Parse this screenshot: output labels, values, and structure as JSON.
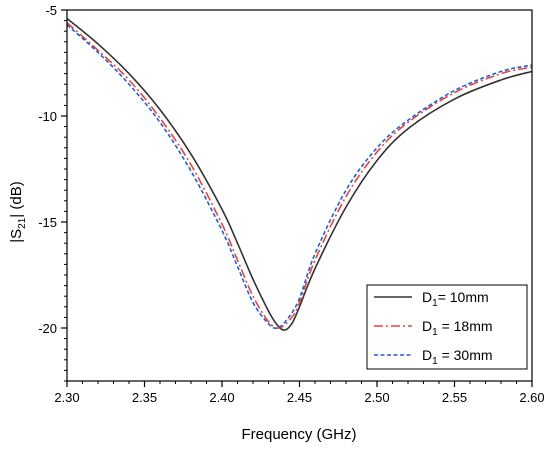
{
  "chart_data": {
    "type": "line",
    "xlabel": "Frequency (GHz)",
    "ylabel_main": "|S",
    "ylabel_sub": "21",
    "ylabel_tail": "| (dB)",
    "xlim": [
      2.3,
      2.6
    ],
    "ylim": [
      -22.5,
      -5
    ],
    "x_ticks": [
      2.3,
      2.35,
      2.4,
      2.45,
      2.5,
      2.55,
      2.6
    ],
    "x_tick_labels": [
      "2.30",
      "2.35",
      "2.40",
      "2.45",
      "2.50",
      "2.55",
      "2.60"
    ],
    "y_ticks": [
      -5,
      -10,
      -15,
      -20
    ],
    "y_tick_labels": [
      "-5",
      "-10",
      "-15",
      "-20"
    ],
    "grid": false,
    "legend_position": "bottom-right",
    "series": [
      {
        "name_main": "D",
        "name_sub": "1",
        "name_tail": "= 10mm",
        "color": "#333333",
        "style": "solid",
        "x": [
          2.3,
          2.32,
          2.34,
          2.36,
          2.38,
          2.4,
          2.41,
          2.42,
          2.43,
          2.435,
          2.44,
          2.445,
          2.45,
          2.46,
          2.48,
          2.5,
          2.52,
          2.55,
          2.58,
          2.6
        ],
        "y": [
          -5.4,
          -6.6,
          -8.0,
          -9.7,
          -11.8,
          -14.4,
          -16.0,
          -17.7,
          -19.2,
          -19.8,
          -20.1,
          -19.8,
          -19.0,
          -17.2,
          -14.3,
          -12.1,
          -10.6,
          -9.2,
          -8.3,
          -7.9
        ]
      },
      {
        "name_main": "D",
        "name_sub": "1",
        "name_tail": " = 18mm",
        "color": "#e8433b",
        "style": "dashdot",
        "x": [
          2.3,
          2.32,
          2.34,
          2.36,
          2.38,
          2.4,
          2.41,
          2.42,
          2.43,
          2.437,
          2.445,
          2.45,
          2.46,
          2.48,
          2.5,
          2.52,
          2.55,
          2.58,
          2.6
        ],
        "y": [
          -5.6,
          -6.9,
          -8.3,
          -10.1,
          -12.3,
          -15.1,
          -16.8,
          -18.5,
          -19.7,
          -20.0,
          -19.5,
          -18.8,
          -16.8,
          -13.8,
          -11.7,
          -10.3,
          -8.9,
          -8.0,
          -7.7
        ]
      },
      {
        "name_main": "D",
        "name_sub": "1",
        "name_tail": " = 30mm",
        "color": "#1f5fd6",
        "style": "dashed",
        "x": [
          2.3,
          2.32,
          2.34,
          2.36,
          2.38,
          2.4,
          2.41,
          2.42,
          2.43,
          2.436,
          2.443,
          2.45,
          2.46,
          2.48,
          2.5,
          2.52,
          2.55,
          2.58,
          2.6
        ],
        "y": [
          -5.7,
          -7.0,
          -8.5,
          -10.3,
          -12.6,
          -15.4,
          -17.1,
          -18.8,
          -19.8,
          -20.0,
          -19.5,
          -18.6,
          -16.5,
          -13.5,
          -11.5,
          -10.2,
          -8.8,
          -7.9,
          -7.6
        ]
      }
    ]
  }
}
